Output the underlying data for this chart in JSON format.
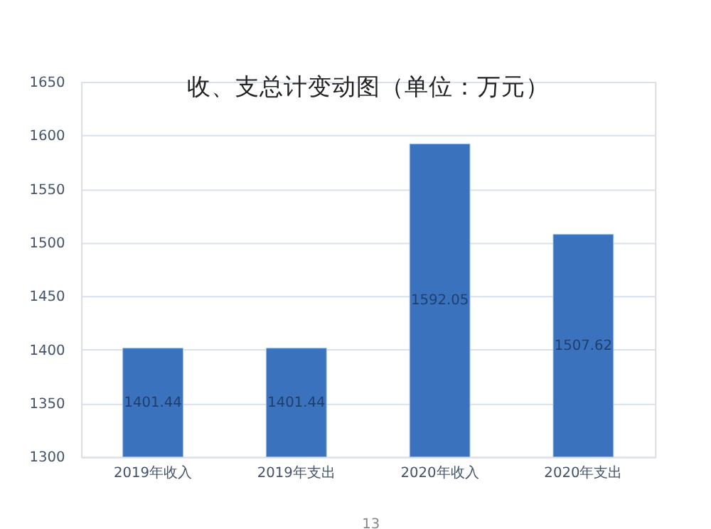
{
  "chart_data": {
    "type": "bar",
    "title": "收、支总计变动图（单位：万元）",
    "categories": [
      "2019年收入",
      "2019年支出",
      "2020年收入",
      "2020年支出"
    ],
    "values": [
      1401.44,
      1401.44,
      1592.05,
      1507.62
    ],
    "color": "#3a72bd",
    "ylim": [
      1300,
      1650
    ],
    "yticks": [
      1300,
      1350,
      1400,
      1450,
      1500,
      1550,
      1600,
      1650
    ],
    "grid": "y",
    "data_labels": true,
    "annotations": [
      "13"
    ]
  }
}
